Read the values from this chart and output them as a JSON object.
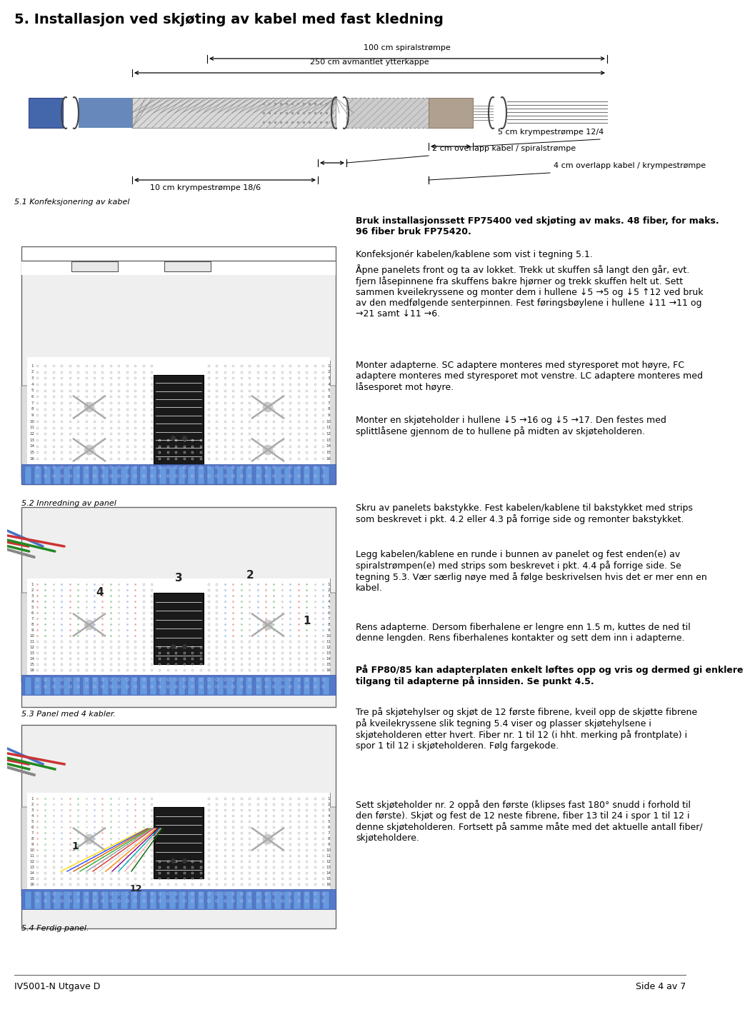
{
  "title": "5. Installasjon ved skjøting av kabel med fast kledning",
  "bg_color": "#ffffff",
  "text_color": "#000000",
  "section51_label": "5.1 Konfeksjonering av kabel",
  "section52_label": "5.2 Innredning av panel",
  "section53_label": "5.3 Panel med 4 kabler.",
  "section54_label": "5.4 Ferdig panel.",
  "footer_left": "IV5001-N Utgave D",
  "footer_right": "Side 4 av 7",
  "dim1_text": "100 cm spiralstrømpe",
  "dim2_text": "250 cm avmantlet ytterkappe",
  "dim3_text": "5 cm krympestrømpe 12/4",
  "dim4_text": "2 cm overlapp kabel / spiralstrømpe",
  "dim5_text": "10 cm krympestrømpe 18/6",
  "dim6_text": "4 cm overlapp kabel / krympestrømpe",
  "para1_bold": "Bruk installasjonssett FP75400 ved skjøting av maks. 48 fiber, for maks.\n96 fiber bruk FP75420.",
  "para1_normal": "Konfeksjonér kabelen/kablene som vist i tegning 5.1.",
  "para2": "Åpne panelets front og ta av lokket. Trekk ut skuffen så langt den går, evt.\nfjern låsepinnene fra skuffens bakre hjørner og trekk skuffen helt ut. Sett\nsammen kveilekryssene og monter dem i hullene ↓5 →5 og ↓5 ↑12 ved bruk\nav den medfølgende senterpinnen. Fest føringsbøylene i hullene ↓11 →11 og\n→21 samt ↓11 →6.",
  "para3": "Monter adapterne. SC adaptere monteres med styresporet mot høyre, FC\nadaptere monteres med styresporet mot venstre. LC adaptere monteres med\nlåsesporet mot høyre.",
  "para4": "Monter en skjøteholder i hullene ↓5 →16 og ↓5 →17. Den festes med\nsplittlåsene gjennom de to hullene på midten av skjøteholderen.",
  "para5": "Skru av panelets bakstykke. Fest kabelen/kablene til bakstykket med strips\nsom beskrevet i pkt. 4.2 eller 4.3 på forrige side og remonter bakstykket.",
  "para6": "Legg kabelen/kablene en runde i bunnen av panelet og fest enden(e) av\nspiralstrømpen(e) med strips som beskrevet i pkt. 4.4 på forrige side. Se\ntegning 5.3. Vær særlig nøye med å følge beskrivelsen hvis det er mer enn en\nkabel.",
  "para7": "Rens adapterne. Dersom fiberhalene er lengre enn 1.5 m, kuttes de ned til\ndenne lengden. Rens fiberhalenes kontakter og sett dem inn i adapterne.",
  "para8": "På FP80/85 kan adapterplaten enkelt løftes opp og vris og dermed gi enklere\ntilgang til adapterne på innsiden. Se punkt 4.5.",
  "para9": "Tre på skjøtehylser og skjøt de 12 første fibrene, kveil opp de skjøtte fibrene\npå kveilekryssene slik tegning 5.4 viser og plasser skjøtehylsene i\nskjøteholderen etter hvert. Fiber nr. 1 til 12 (i hht. merking på frontplate) i\nspor 1 til 12 i skjøteholderen. Følg fargekode.",
  "para10": "Sett skjøteholder nr. 2 oppå den første (klipses fast 180° snudd i forhold til\nden første). Skjøt og fest de 12 neste fibrene, fiber 13 til 24 i spor 1 til 12 i\ndenne skjøteholderen. Fortsett på samme måte med det aktuelle antall fiber/\nskjøteholdere."
}
